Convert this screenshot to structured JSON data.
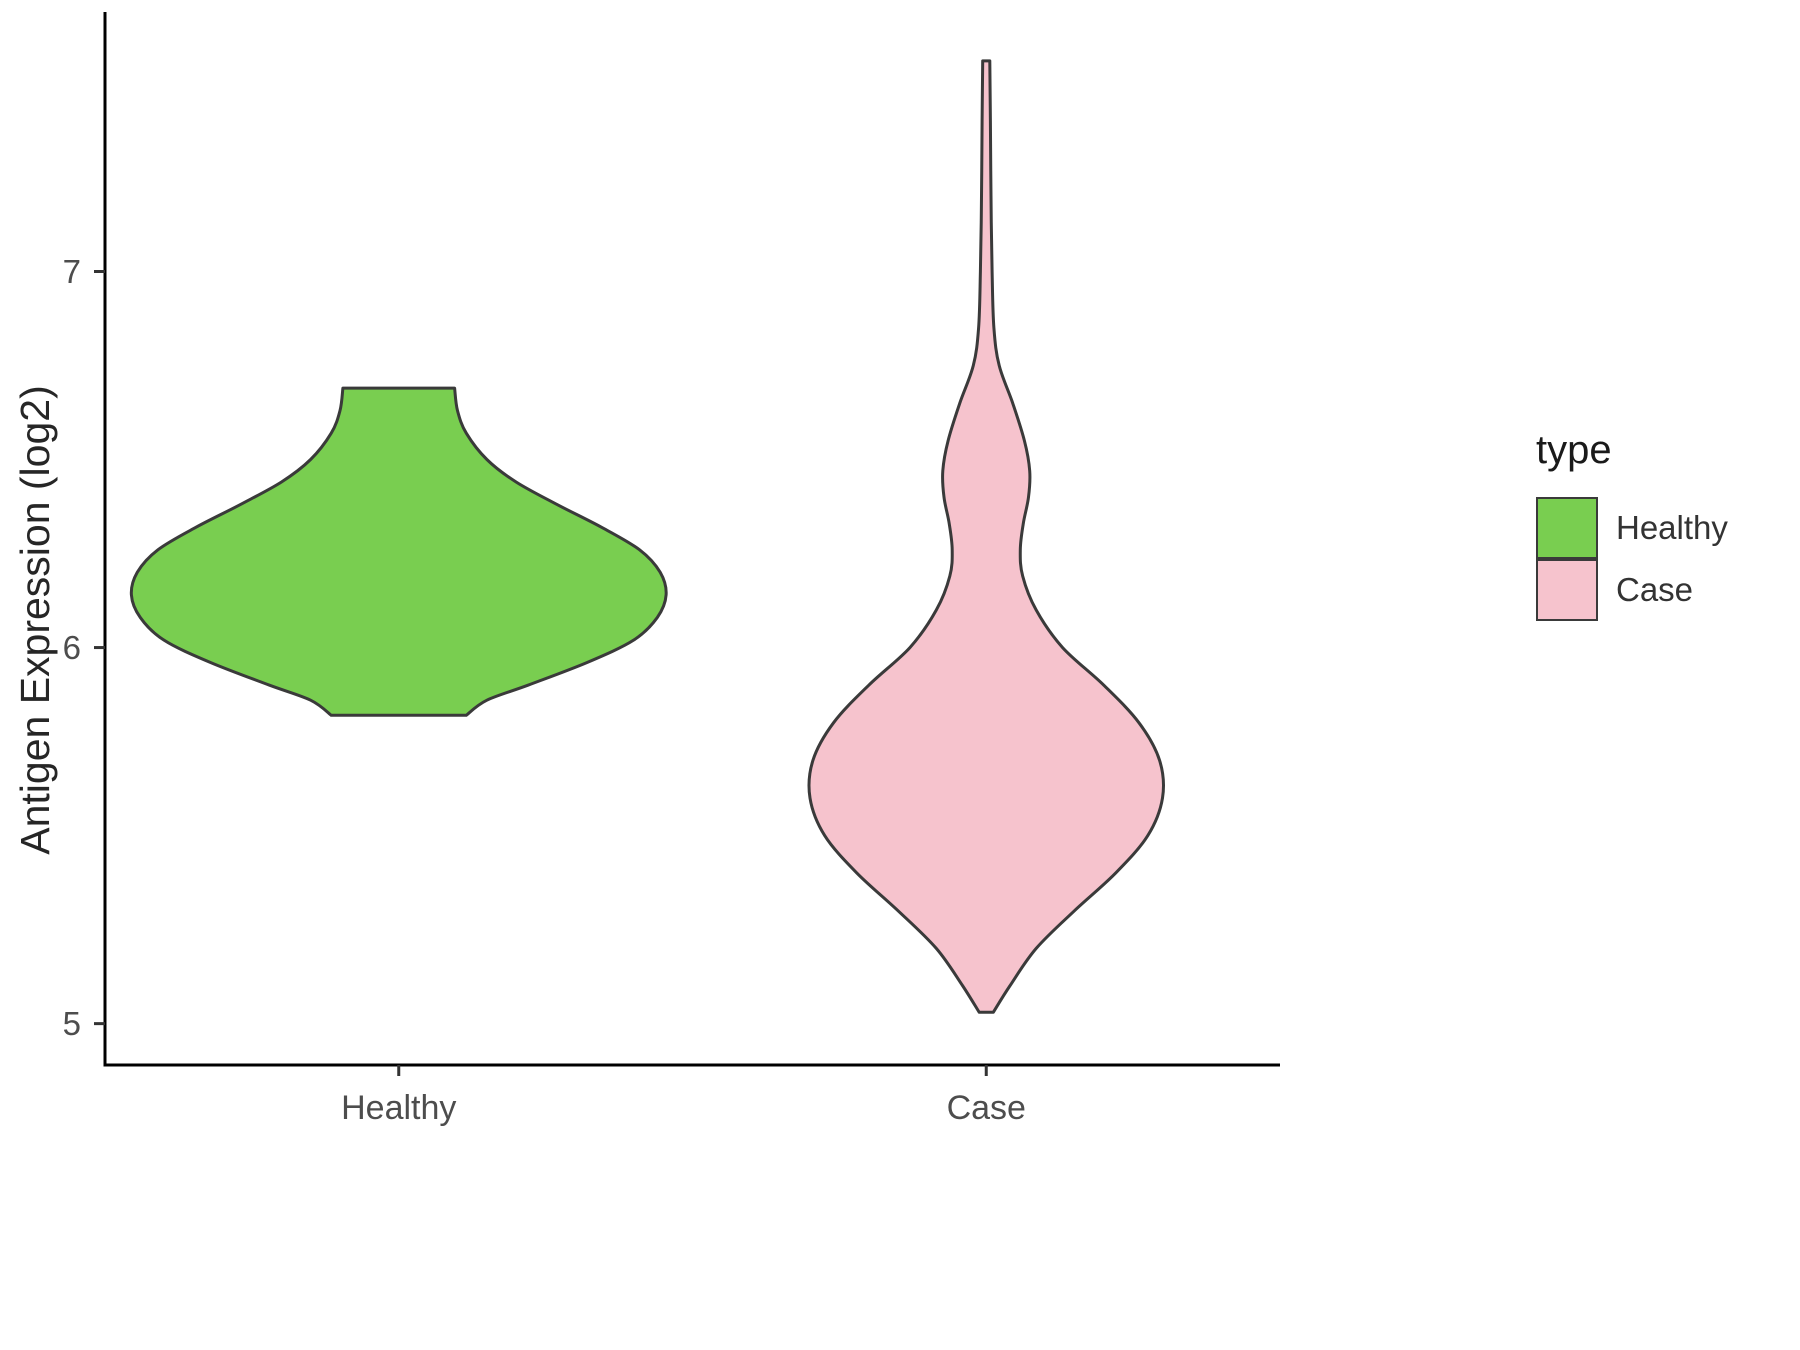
{
  "chart_data": {
    "type": "violin",
    "title": "",
    "xlabel": "",
    "ylabel": "Antigen Expression (log2)",
    "categories": [
      "Healthy",
      "Case"
    ],
    "yticks": [
      5,
      6,
      7
    ],
    "ylim": [
      4.89,
      7.69
    ],
    "grid": "off",
    "background": "#ffffff",
    "axis_color": "#000000",
    "tick_color": "#333333",
    "tick_label_color": "#4d4d4d",
    "outline_color": "#3a3a3a",
    "legend": {
      "title": "type",
      "position": "right",
      "labels": [
        "Healthy",
        "Case"
      ]
    },
    "series": [
      {
        "name": "Healthy",
        "fill": "#79CE50",
        "value_range": [
          5.82,
          6.69
        ],
        "peak_value": 6.14,
        "profile": [
          [
            6.69,
            0.095
          ],
          [
            6.63,
            0.1
          ],
          [
            6.57,
            0.115
          ],
          [
            6.5,
            0.15
          ],
          [
            6.44,
            0.2
          ],
          [
            6.38,
            0.27
          ],
          [
            6.32,
            0.345
          ],
          [
            6.26,
            0.41
          ],
          [
            6.2,
            0.445
          ],
          [
            6.14,
            0.455
          ],
          [
            6.08,
            0.44
          ],
          [
            6.02,
            0.4
          ],
          [
            5.96,
            0.32
          ],
          [
            5.9,
            0.22
          ],
          [
            5.86,
            0.15
          ],
          [
            5.82,
            0.115
          ]
        ]
      },
      {
        "name": "Case",
        "fill": "#F6C3CD",
        "value_range": [
          5.03,
          7.56
        ],
        "peak_value": 5.6,
        "profile": [
          [
            7.56,
            0.006
          ],
          [
            7.4,
            0.007
          ],
          [
            7.2,
            0.008
          ],
          [
            7.0,
            0.01
          ],
          [
            6.85,
            0.013
          ],
          [
            6.75,
            0.022
          ],
          [
            6.65,
            0.045
          ],
          [
            6.55,
            0.065
          ],
          [
            6.47,
            0.074
          ],
          [
            6.4,
            0.072
          ],
          [
            6.33,
            0.063
          ],
          [
            6.26,
            0.058
          ],
          [
            6.19,
            0.062
          ],
          [
            6.1,
            0.085
          ],
          [
            6.0,
            0.13
          ],
          [
            5.9,
            0.2
          ],
          [
            5.8,
            0.26
          ],
          [
            5.7,
            0.295
          ],
          [
            5.6,
            0.3
          ],
          [
            5.5,
            0.275
          ],
          [
            5.4,
            0.22
          ],
          [
            5.3,
            0.15
          ],
          [
            5.2,
            0.085
          ],
          [
            5.1,
            0.04
          ],
          [
            5.03,
            0.012
          ]
        ]
      }
    ]
  }
}
